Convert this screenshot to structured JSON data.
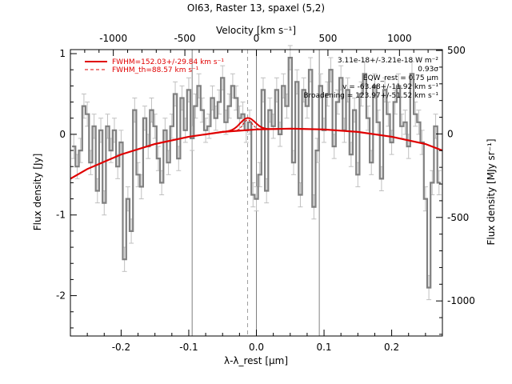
{
  "chart_data": {
    "type": "line",
    "title": "OI63, Raster 13, spaxel (5,2)",
    "xlabel": "λ-λ_rest [μm]",
    "ylabel": "Flux density [Jy]",
    "top_xlabel": "Velocity [km s⁻¹]",
    "right_ylabel": "Flux density [MJy sr⁻¹]",
    "xlim": [
      -0.275,
      0.275
    ],
    "ylim": [
      -2.5,
      1.05
    ],
    "top_xlim": [
      -1300,
      1300
    ],
    "right_ylim": [
      -1210,
      505
    ],
    "x_ticks": [
      "-0.2",
      "-0.1",
      "0.0",
      "0.1",
      "0.2"
    ],
    "y_ticks": [
      "-2",
      "-1",
      "0",
      "1"
    ],
    "top_ticks": [
      "-1000",
      "-500",
      "0",
      "500",
      "1000"
    ],
    "right_ticks": [
      "-1000",
      "-500",
      "0",
      "500"
    ],
    "vertical_lines": [
      -0.095,
      0.0,
      0.093
    ],
    "dashed_line": -0.013,
    "legend": [
      {
        "label": "FWHM=152.03+/-29.84 km s⁻¹",
        "style": "solid",
        "color": "#e00000"
      },
      {
        "label": "FWHM_th=88.57 km s⁻¹",
        "style": "dashed",
        "color": "#e00000"
      }
    ],
    "annotations": [
      "3.11e-18+/-3.21e-18 W m⁻²",
      "0.93σ",
      "EQW_rest = 0.75 μm",
      "v = -63.48+/-11.92 km s⁻¹",
      "Broadening = 123.97+/-51.52 km s⁻¹"
    ],
    "grid": false,
    "series": [
      {
        "label": "spectrum",
        "color": "#808080",
        "x": [
          -0.27,
          -0.265,
          -0.26,
          -0.255,
          -0.25,
          -0.245,
          -0.24,
          -0.235,
          -0.23,
          -0.225,
          -0.22,
          -0.215,
          -0.21,
          -0.205,
          -0.2,
          -0.195,
          -0.19,
          -0.185,
          -0.18,
          -0.175,
          -0.17,
          -0.165,
          -0.16,
          -0.155,
          -0.15,
          -0.145,
          -0.14,
          -0.135,
          -0.13,
          -0.125,
          -0.12,
          -0.115,
          -0.11,
          -0.105,
          -0.1,
          -0.095,
          -0.09,
          -0.085,
          -0.08,
          -0.075,
          -0.07,
          -0.065,
          -0.06,
          -0.055,
          -0.05,
          -0.045,
          -0.04,
          -0.035,
          -0.03,
          -0.025,
          -0.02,
          -0.015,
          -0.01,
          -0.005,
          0.0,
          0.005,
          0.01,
          0.015,
          0.02,
          0.025,
          0.03,
          0.035,
          0.04,
          0.045,
          0.05,
          0.055,
          0.06,
          0.065,
          0.07,
          0.075,
          0.08,
          0.085,
          0.09,
          0.095,
          0.1,
          0.105,
          0.11,
          0.115,
          0.12,
          0.125,
          0.13,
          0.135,
          0.14,
          0.145,
          0.15,
          0.155,
          0.16,
          0.165,
          0.17,
          0.175,
          0.18,
          0.185,
          0.19,
          0.195,
          0.2,
          0.205,
          0.21,
          0.215,
          0.22,
          0.225,
          0.23,
          0.235,
          0.24,
          0.245,
          0.25,
          0.255,
          0.26,
          0.265,
          0.27
        ],
        "y": [
          -0.15,
          -0.4,
          -0.2,
          0.35,
          0.25,
          -0.35,
          0.1,
          -0.7,
          0.05,
          -0.85,
          0.1,
          -0.2,
          0.05,
          -0.4,
          -0.1,
          -1.55,
          -0.8,
          -1.2,
          0.3,
          -0.5,
          -0.65,
          0.2,
          -0.15,
          0.3,
          0.1,
          -0.3,
          -0.6,
          0.05,
          -0.35,
          0.1,
          0.5,
          -0.3,
          0.45,
          0.05,
          0.55,
          -0.05,
          0.35,
          0.6,
          0.3,
          0.05,
          0.1,
          0.45,
          0.2,
          0.4,
          0.7,
          0.15,
          0.35,
          0.6,
          0.45,
          0.2,
          0.25,
          0.05,
          0.15,
          -0.75,
          -0.8,
          -0.5,
          0.55,
          -0.7,
          0.3,
          0.1,
          0.55,
          0.0,
          0.6,
          0.35,
          0.95,
          -0.35,
          0.65,
          -0.75,
          0.55,
          0.35,
          0.8,
          -0.9,
          -0.2,
          0.6,
          0.05,
          0.5,
          0.8,
          -0.15,
          0.4,
          0.7,
          0.05,
          0.55,
          -0.25,
          0.3,
          -0.5,
          0.5,
          0.75,
          0.2,
          -0.35,
          0.6,
          0.15,
          -0.55,
          0.55,
          0.25,
          -0.1,
          0.4,
          0.6,
          0.1,
          0.15,
          -0.15,
          0.75,
          0.25,
          0.15,
          -0.1,
          -0.8,
          -1.9,
          -0.6,
          0.1,
          -0.6
        ]
      },
      {
        "label": "fit",
        "color": "#e00000",
        "x": [
          -0.275,
          -0.25,
          -0.2,
          -0.15,
          -0.1,
          -0.05,
          0.0,
          0.05,
          0.1,
          0.15,
          0.2,
          0.25,
          0.275
        ],
        "y": [
          -0.55,
          -0.43,
          -0.25,
          -0.12,
          -0.03,
          0.03,
          0.06,
          0.07,
          0.06,
          0.03,
          -0.03,
          -0.12,
          -0.2
        ]
      }
    ],
    "gaussian": {
      "center": -0.013,
      "sigma": 0.011,
      "amplitude": 0.15
    },
    "error_bar": 0.15
  }
}
